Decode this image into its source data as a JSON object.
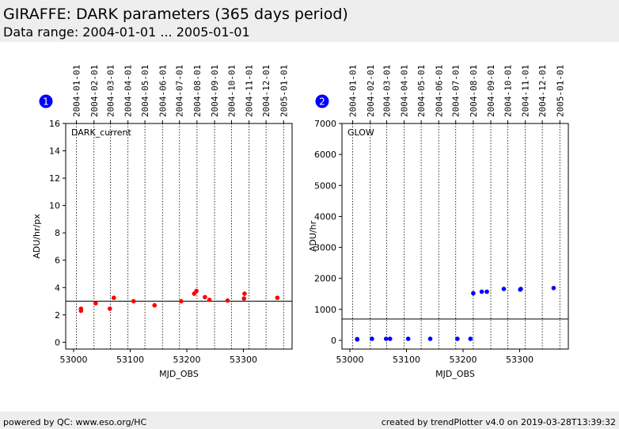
{
  "header": {
    "title": "GIRAFFE: DARK parameters (365 days period)",
    "subtitle": "Data range: 2004-01-01 ... 2005-01-01"
  },
  "footer": {
    "left": "powered by QC: www.eso.org/HC",
    "right": "created by trendPlotter v4.0 on 2019-03-28T13:39:32"
  },
  "chart_data": [
    {
      "type": "scatter",
      "badge": "1",
      "label": "DARK_current",
      "xlabel": "MJD_OBS",
      "ylabel": "ADU/hr/px",
      "xlim": [
        52986,
        53386
      ],
      "ylim": [
        -0.5,
        16
      ],
      "xticks": [
        53000,
        53100,
        53200,
        53300
      ],
      "yticks": [
        0,
        2,
        4,
        6,
        8,
        10,
        12,
        14,
        16
      ],
      "reference_line": 3.0,
      "color": "#ff0000",
      "date_labels": [
        "2004-01-01",
        "2004-02-01",
        "2004-03-01",
        "2004-04-01",
        "2004-05-01",
        "2004-06-01",
        "2004-07-01",
        "2004-08-01",
        "2004-09-01",
        "2004-10-01",
        "2004-11-01",
        "2004-12-01",
        "2005-01-01"
      ],
      "date_mjd": [
        53005,
        53036,
        53065,
        53096,
        53126,
        53157,
        53187,
        53218,
        53249,
        53279,
        53310,
        53340,
        53371
      ],
      "points": [
        {
          "x": 53013,
          "y": 2.45
        },
        {
          "x": 53013,
          "y": 2.3
        },
        {
          "x": 53039,
          "y": 2.85
        },
        {
          "x": 53064,
          "y": 2.45
        },
        {
          "x": 53071,
          "y": 3.25
        },
        {
          "x": 53106,
          "y": 3.0
        },
        {
          "x": 53143,
          "y": 2.7
        },
        {
          "x": 53190,
          "y": 3.0
        },
        {
          "x": 53213,
          "y": 3.55
        },
        {
          "x": 53217,
          "y": 3.75
        },
        {
          "x": 53232,
          "y": 3.3
        },
        {
          "x": 53240,
          "y": 3.1
        },
        {
          "x": 53272,
          "y": 3.05
        },
        {
          "x": 53301,
          "y": 3.2
        },
        {
          "x": 53302,
          "y": 3.55
        },
        {
          "x": 53360,
          "y": 3.25
        }
      ]
    },
    {
      "type": "scatter",
      "badge": "2",
      "label": "GLOW",
      "xlabel": "MJD_OBS",
      "ylabel": "ADU/hr",
      "xlim": [
        52986,
        53386
      ],
      "ylim": [
        -280,
        7000
      ],
      "xticks": [
        53000,
        53100,
        53200,
        53300
      ],
      "yticks": [
        0,
        1000,
        2000,
        3000,
        4000,
        5000,
        6000,
        7000
      ],
      "reference_line": 690,
      "color": "#0000ff",
      "date_labels": [
        "2004-01-01",
        "2004-02-01",
        "2004-03-01",
        "2004-04-01",
        "2004-05-01",
        "2004-06-01",
        "2004-07-01",
        "2004-08-01",
        "2004-09-01",
        "2004-10-01",
        "2004-11-01",
        "2004-12-01",
        "2005-01-01"
      ],
      "date_mjd": [
        53005,
        53036,
        53065,
        53096,
        53126,
        53157,
        53187,
        53218,
        53249,
        53279,
        53310,
        53340,
        53371
      ],
      "points": [
        {
          "x": 53013,
          "y": 40
        },
        {
          "x": 53013,
          "y": 30
        },
        {
          "x": 53039,
          "y": 50
        },
        {
          "x": 53064,
          "y": 50
        },
        {
          "x": 53071,
          "y": 50
        },
        {
          "x": 53103,
          "y": 50
        },
        {
          "x": 53142,
          "y": 50
        },
        {
          "x": 53190,
          "y": 50
        },
        {
          "x": 53213,
          "y": 50
        },
        {
          "x": 53218,
          "y": 1520
        },
        {
          "x": 53233,
          "y": 1570
        },
        {
          "x": 53242,
          "y": 1570
        },
        {
          "x": 53272,
          "y": 1660
        },
        {
          "x": 53301,
          "y": 1640
        },
        {
          "x": 53302,
          "y": 1660
        },
        {
          "x": 53360,
          "y": 1690
        }
      ]
    }
  ]
}
